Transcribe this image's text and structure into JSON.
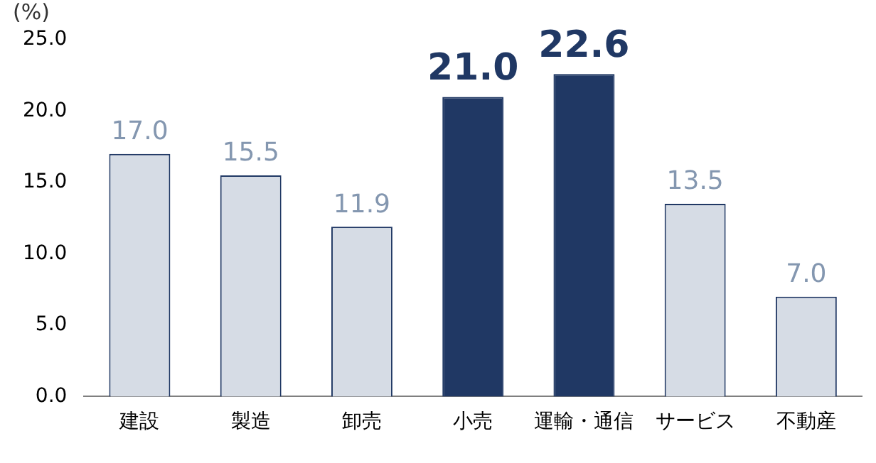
{
  "chart_data": {
    "type": "bar",
    "ylabel": "(%)",
    "categories": [
      "建設",
      "製造",
      "卸売",
      "小売",
      "運輸・通信",
      "サービス",
      "不動産"
    ],
    "values": [
      17.0,
      15.5,
      11.9,
      21.0,
      22.6,
      13.5,
      7.0
    ],
    "colors": [
      "#d6dce5",
      "#d6dce5",
      "#d6dce5",
      "#203864",
      "#203864",
      "#d6dce5",
      "#d6dce5"
    ],
    "ylim": [
      0,
      25
    ],
    "yticks": [
      {
        "value": 0,
        "label": "0.0"
      },
      {
        "value": 5,
        "label": "5.0"
      },
      {
        "value": 10,
        "label": "10.0"
      },
      {
        "value": 15,
        "label": "15.0"
      },
      {
        "value": 20,
        "label": "20.0"
      },
      {
        "value": 25,
        "label": "25.0"
      }
    ],
    "value_labels": [
      "17.0",
      "15.5",
      "11.9",
      "21.0",
      "22.6",
      "13.5",
      "7.0"
    ],
    "grid": false,
    "legend": false
  }
}
